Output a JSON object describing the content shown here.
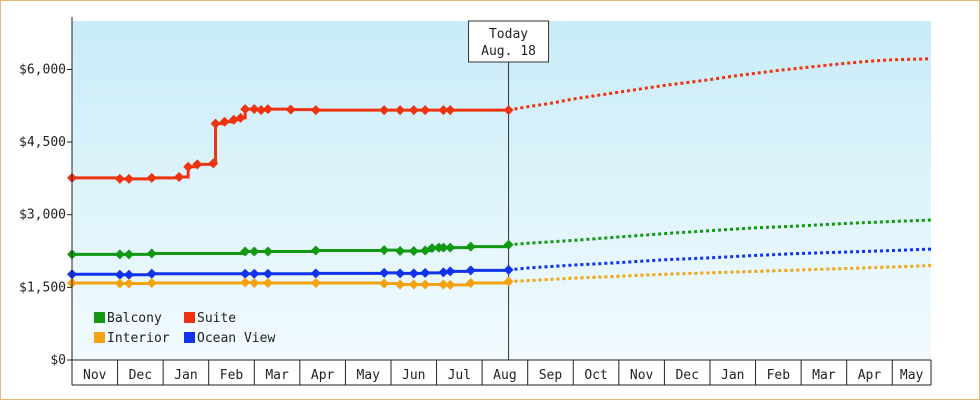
{
  "chart_data": {
    "type": "line",
    "title": "",
    "xlabel": "",
    "ylabel": "",
    "ylim": [
      0,
      7000
    ],
    "y_ticks": [
      {
        "value": 0,
        "label": "$0"
      },
      {
        "value": 1500,
        "label": "$1,500"
      },
      {
        "value": 3000,
        "label": "$3,000"
      },
      {
        "value": 4500,
        "label": "$4,500"
      },
      {
        "value": 6000,
        "label": "$6,000"
      }
    ],
    "x_unit": "months since start of Nov",
    "xlim": [
      0,
      18.85
    ],
    "categories": [
      "Nov",
      "Dec",
      "Jan",
      "Feb",
      "Mar",
      "Apr",
      "May",
      "Jun",
      "Jul",
      "Aug",
      "Sep",
      "Oct",
      "Nov",
      "Dec",
      "Jan",
      "Feb",
      "Mar",
      "Apr",
      "May"
    ],
    "grid": false,
    "background": [
      "#c9ecf8",
      "#f2fbfe"
    ],
    "today": {
      "line1": "Today",
      "line2": "Aug. 18",
      "x": 9.58
    },
    "legend": {
      "placement": "bottom-left"
    },
    "series": [
      {
        "name": "Suite",
        "color": "#ee3311",
        "points": [
          [
            0,
            3760
          ],
          [
            1.05,
            3740
          ],
          [
            1.25,
            3740
          ],
          [
            1.75,
            3760
          ],
          [
            2.35,
            3780
          ],
          [
            2.55,
            3990
          ],
          [
            2.75,
            4040
          ],
          [
            3.1,
            4060
          ],
          [
            3.15,
            4880
          ],
          [
            3.35,
            4920
          ],
          [
            3.55,
            4960
          ],
          [
            3.7,
            5000
          ],
          [
            3.8,
            5180
          ],
          [
            4.0,
            5180
          ],
          [
            4.15,
            5160
          ],
          [
            4.3,
            5180
          ],
          [
            4.8,
            5170
          ],
          [
            5.35,
            5160
          ],
          [
            6.85,
            5160
          ],
          [
            7.2,
            5160
          ],
          [
            7.5,
            5160
          ],
          [
            7.75,
            5160
          ],
          [
            8.15,
            5160
          ],
          [
            8.3,
            5160
          ],
          [
            9.58,
            5160
          ]
        ],
        "forecast": [
          [
            9.58,
            5160
          ],
          [
            10.0,
            5230
          ],
          [
            10.5,
            5300
          ],
          [
            11.0,
            5390
          ],
          [
            11.5,
            5460
          ],
          [
            12.0,
            5530
          ],
          [
            12.5,
            5600
          ],
          [
            13.0,
            5670
          ],
          [
            13.5,
            5730
          ],
          [
            14.0,
            5790
          ],
          [
            14.5,
            5860
          ],
          [
            15.0,
            5920
          ],
          [
            15.5,
            5980
          ],
          [
            16.0,
            6030
          ],
          [
            16.5,
            6080
          ],
          [
            17.0,
            6130
          ],
          [
            17.5,
            6170
          ],
          [
            18.0,
            6200
          ],
          [
            18.85,
            6220
          ]
        ]
      },
      {
        "name": "Balcony",
        "color": "#119911",
        "points": [
          [
            0,
            2180
          ],
          [
            1.05,
            2180
          ],
          [
            1.25,
            2180
          ],
          [
            1.75,
            2200
          ],
          [
            3.8,
            2240
          ],
          [
            4.0,
            2240
          ],
          [
            4.3,
            2240
          ],
          [
            5.35,
            2260
          ],
          [
            6.85,
            2270
          ],
          [
            7.2,
            2250
          ],
          [
            7.5,
            2250
          ],
          [
            7.75,
            2260
          ],
          [
            7.9,
            2310
          ],
          [
            8.05,
            2320
          ],
          [
            8.15,
            2320
          ],
          [
            8.3,
            2320
          ],
          [
            8.75,
            2340
          ],
          [
            9.58,
            2380
          ]
        ],
        "forecast": [
          [
            9.58,
            2380
          ],
          [
            10.0,
            2410
          ],
          [
            11.0,
            2470
          ],
          [
            12.0,
            2540
          ],
          [
            13.0,
            2610
          ],
          [
            14.0,
            2670
          ],
          [
            15.0,
            2730
          ],
          [
            16.0,
            2770
          ],
          [
            17.0,
            2820
          ],
          [
            18.0,
            2860
          ],
          [
            18.85,
            2890
          ]
        ]
      },
      {
        "name": "Ocean View",
        "color": "#1133ee",
        "points": [
          [
            0,
            1770
          ],
          [
            1.05,
            1760
          ],
          [
            1.25,
            1760
          ],
          [
            1.75,
            1780
          ],
          [
            3.8,
            1780
          ],
          [
            4.0,
            1780
          ],
          [
            4.3,
            1780
          ],
          [
            5.35,
            1790
          ],
          [
            6.85,
            1800
          ],
          [
            7.2,
            1790
          ],
          [
            7.5,
            1790
          ],
          [
            7.75,
            1800
          ],
          [
            8.15,
            1810
          ],
          [
            8.3,
            1830
          ],
          [
            8.75,
            1850
          ],
          [
            9.58,
            1860
          ]
        ],
        "forecast": [
          [
            9.58,
            1860
          ],
          [
            10.0,
            1900
          ],
          [
            11.0,
            1960
          ],
          [
            12.0,
            2010
          ],
          [
            13.0,
            2070
          ],
          [
            14.0,
            2110
          ],
          [
            15.0,
            2160
          ],
          [
            16.0,
            2200
          ],
          [
            17.0,
            2230
          ],
          [
            18.0,
            2260
          ],
          [
            18.85,
            2290
          ]
        ]
      },
      {
        "name": "Interior",
        "color": "#f5a211",
        "points": [
          [
            0,
            1590
          ],
          [
            1.05,
            1580
          ],
          [
            1.25,
            1580
          ],
          [
            1.75,
            1590
          ],
          [
            3.8,
            1600
          ],
          [
            4.0,
            1590
          ],
          [
            4.3,
            1590
          ],
          [
            5.35,
            1590
          ],
          [
            6.85,
            1580
          ],
          [
            7.2,
            1560
          ],
          [
            7.5,
            1560
          ],
          [
            7.75,
            1560
          ],
          [
            8.15,
            1560
          ],
          [
            8.3,
            1550
          ],
          [
            8.75,
            1590
          ],
          [
            9.58,
            1620
          ]
        ],
        "forecast": [
          [
            9.58,
            1620
          ],
          [
            10.0,
            1640
          ],
          [
            11.0,
            1690
          ],
          [
            12.0,
            1730
          ],
          [
            13.0,
            1770
          ],
          [
            14.0,
            1800
          ],
          [
            15.0,
            1830
          ],
          [
            16.0,
            1860
          ],
          [
            17.0,
            1890
          ],
          [
            18.0,
            1920
          ],
          [
            18.85,
            1950
          ]
        ]
      }
    ],
    "legend_order": [
      "Balcony",
      "Suite",
      "Interior",
      "Ocean View"
    ]
  }
}
